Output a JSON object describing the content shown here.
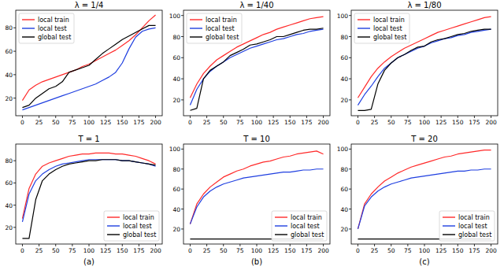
{
  "chart_data": [
    {
      "type": "line",
      "title": "λ = 1/4",
      "x": [
        0,
        10,
        20,
        30,
        40,
        50,
        60,
        70,
        80,
        90,
        100,
        110,
        120,
        130,
        140,
        150,
        160,
        170,
        180,
        190,
        200
      ],
      "xlim": [
        -10,
        210
      ],
      "xticks": [
        0,
        25,
        50,
        75,
        100,
        125,
        150,
        175,
        200
      ],
      "ylim": [
        5,
        95
      ],
      "yticks": [
        20,
        40,
        60,
        80
      ],
      "legend": "upper left",
      "series": [
        {
          "name": "local train",
          "color": "#ff2a2a",
          "values": [
            18,
            27,
            31,
            34,
            36,
            38,
            40,
            42,
            44,
            47,
            49,
            52,
            55,
            58,
            61,
            65,
            69,
            74,
            80,
            86,
            91
          ]
        },
        {
          "name": "local test",
          "color": "#1f3fe0",
          "values": [
            10,
            12,
            14,
            16,
            18,
            20,
            22,
            24,
            26,
            28,
            30,
            32,
            35,
            38,
            42,
            50,
            62,
            72,
            77,
            79,
            80
          ]
        },
        {
          "name": "global test",
          "color": "#000000",
          "values": [
            12,
            14,
            20,
            24,
            28,
            30,
            34,
            42,
            44,
            46,
            48,
            53,
            58,
            62,
            66,
            70,
            73,
            76,
            79,
            82,
            82
          ]
        }
      ]
    },
    {
      "type": "line",
      "title": "λ = 1/40",
      "x": [
        0,
        10,
        20,
        30,
        40,
        50,
        60,
        70,
        80,
        90,
        100,
        110,
        120,
        130,
        140,
        150,
        160,
        170,
        180,
        190,
        200
      ],
      "xlim": [
        -10,
        210
      ],
      "xticks": [
        0,
        25,
        50,
        75,
        100,
        125,
        150,
        175,
        200
      ],
      "ylim": [
        5,
        105
      ],
      "yticks": [
        20,
        40,
        60,
        80,
        100
      ],
      "legend": "upper left",
      "series": [
        {
          "name": "local train",
          "color": "#ff2a2a",
          "values": [
            22,
            35,
            45,
            52,
            58,
            62,
            66,
            70,
            73,
            76,
            79,
            82,
            84,
            87,
            89,
            91,
            93,
            95,
            97,
            98,
            99
          ]
        },
        {
          "name": "local test",
          "color": "#1f3fe0",
          "values": [
            15,
            30,
            40,
            47,
            52,
            56,
            60,
            63,
            66,
            69,
            71,
            73,
            75,
            77,
            78,
            80,
            82,
            83,
            85,
            86,
            87
          ]
        },
        {
          "name": "global test",
          "color": "#000000",
          "values": [
            10,
            12,
            40,
            48,
            52,
            56,
            62,
            65,
            68,
            72,
            73,
            75,
            77,
            80,
            80,
            82,
            84,
            86,
            87,
            87,
            88
          ]
        }
      ]
    },
    {
      "type": "line",
      "title": "λ = 1/80",
      "x": [
        0,
        10,
        20,
        30,
        40,
        50,
        60,
        70,
        80,
        90,
        100,
        110,
        120,
        130,
        140,
        150,
        160,
        170,
        180,
        190,
        200
      ],
      "xlim": [
        -10,
        210
      ],
      "xticks": [
        0,
        25,
        50,
        75,
        100,
        125,
        150,
        175,
        200
      ],
      "ylim": [
        5,
        105
      ],
      "yticks": [
        20,
        40,
        60,
        80,
        100
      ],
      "legend": "upper left",
      "series": [
        {
          "name": "local train",
          "color": "#ff2a2a",
          "values": [
            22,
            32,
            42,
            50,
            56,
            61,
            65,
            69,
            72,
            75,
            78,
            81,
            84,
            86,
            88,
            90,
            92,
            94,
            96,
            98,
            99
          ]
        },
        {
          "name": "local test",
          "color": "#1f3fe0",
          "values": [
            15,
            25,
            33,
            42,
            50,
            55,
            60,
            63,
            66,
            69,
            71,
            74,
            76,
            78,
            79,
            81,
            82,
            84,
            85,
            86,
            87
          ]
        },
        {
          "name": "global test",
          "color": "#000000",
          "values": [
            10,
            10,
            11,
            35,
            48,
            55,
            60,
            63,
            67,
            70,
            71,
            75,
            77,
            78,
            80,
            82,
            83,
            85,
            86,
            87,
            87
          ]
        }
      ]
    },
    {
      "type": "line",
      "title": "T = 1",
      "x": [
        0,
        10,
        20,
        30,
        40,
        50,
        60,
        70,
        80,
        90,
        100,
        110,
        120,
        130,
        140,
        150,
        160,
        170,
        180,
        190,
        200
      ],
      "xlim": [
        -10,
        210
      ],
      "xticks": [
        0,
        25,
        50,
        75,
        100,
        125,
        150,
        175,
        200
      ],
      "ylim": [
        5,
        95
      ],
      "yticks": [
        20,
        40,
        60,
        80
      ],
      "legend": "lower right",
      "series": [
        {
          "name": "local train",
          "color": "#ff2a2a",
          "values": [
            28,
            55,
            68,
            75,
            78,
            80,
            82,
            84,
            85,
            86,
            86,
            87,
            87,
            87,
            86,
            86,
            85,
            84,
            82,
            80,
            77
          ]
        },
        {
          "name": "local test",
          "color": "#1f3fe0",
          "values": [
            25,
            50,
            62,
            68,
            72,
            75,
            77,
            78,
            79,
            80,
            81,
            81,
            81,
            81,
            81,
            80,
            80,
            79,
            78,
            77,
            75
          ]
        },
        {
          "name": "global test",
          "color": "#000000",
          "values": [
            10,
            10,
            45,
            62,
            68,
            72,
            75,
            77,
            78,
            79,
            80,
            80,
            81,
            81,
            81,
            80,
            80,
            79,
            78,
            77,
            76
          ]
        }
      ]
    },
    {
      "type": "line",
      "title": "T = 10",
      "x": [
        0,
        10,
        20,
        30,
        40,
        50,
        60,
        70,
        80,
        90,
        100,
        110,
        120,
        130,
        140,
        150,
        160,
        170,
        180,
        190,
        200
      ],
      "xlim": [
        -10,
        210
      ],
      "xticks": [
        0,
        25,
        50,
        75,
        100,
        125,
        150,
        175,
        200
      ],
      "ylim": [
        5,
        105
      ],
      "yticks": [
        20,
        40,
        60,
        80,
        100
      ],
      "legend": "lower right",
      "series": [
        {
          "name": "local train",
          "color": "#ff2a2a",
          "values": [
            25,
            45,
            55,
            62,
            67,
            72,
            75,
            78,
            80,
            83,
            85,
            87,
            88,
            90,
            92,
            93,
            95,
            96,
            97,
            98,
            95
          ]
        },
        {
          "name": "local test",
          "color": "#1f3fe0",
          "values": [
            25,
            42,
            52,
            58,
            62,
            65,
            67,
            69,
            71,
            72,
            73,
            74,
            75,
            76,
            77,
            77,
            78,
            79,
            79,
            80,
            80
          ]
        },
        {
          "name": "global test",
          "color": "#000000",
          "values": [
            10,
            10,
            10,
            10,
            10,
            10,
            10,
            10,
            10,
            10,
            10,
            10,
            10,
            10,
            10,
            10,
            10,
            10,
            10,
            10,
            10
          ]
        }
      ]
    },
    {
      "type": "line",
      "title": "T = 20",
      "x": [
        0,
        10,
        20,
        30,
        40,
        50,
        60,
        70,
        80,
        90,
        100,
        110,
        120,
        130,
        140,
        150,
        160,
        170,
        180,
        190,
        200
      ],
      "xlim": [
        -10,
        210
      ],
      "xticks": [
        0,
        25,
        50,
        75,
        100,
        125,
        150,
        175,
        200
      ],
      "ylim": [
        5,
        105
      ],
      "yticks": [
        20,
        40,
        60,
        80,
        100
      ],
      "legend": "lower right",
      "series": [
        {
          "name": "local train",
          "color": "#ff2a2a",
          "values": [
            20,
            45,
            55,
            62,
            68,
            72,
            76,
            79,
            82,
            84,
            86,
            88,
            90,
            92,
            93,
            95,
            96,
            97,
            98,
            99,
            99
          ]
        },
        {
          "name": "local test",
          "color": "#1f3fe0",
          "values": [
            20,
            43,
            52,
            58,
            62,
            65,
            67,
            69,
            71,
            72,
            73,
            74,
            75,
            76,
            77,
            78,
            78,
            79,
            79,
            80,
            80
          ]
        },
        {
          "name": "global test",
          "color": "#000000",
          "values": [
            10,
            10,
            10,
            10,
            10,
            10,
            10,
            10,
            10,
            10,
            10,
            10,
            10,
            10,
            10,
            10,
            10,
            10,
            10,
            10,
            10
          ]
        }
      ]
    }
  ],
  "panel_labels": [
    "(a)",
    "(b)",
    "(c)"
  ]
}
